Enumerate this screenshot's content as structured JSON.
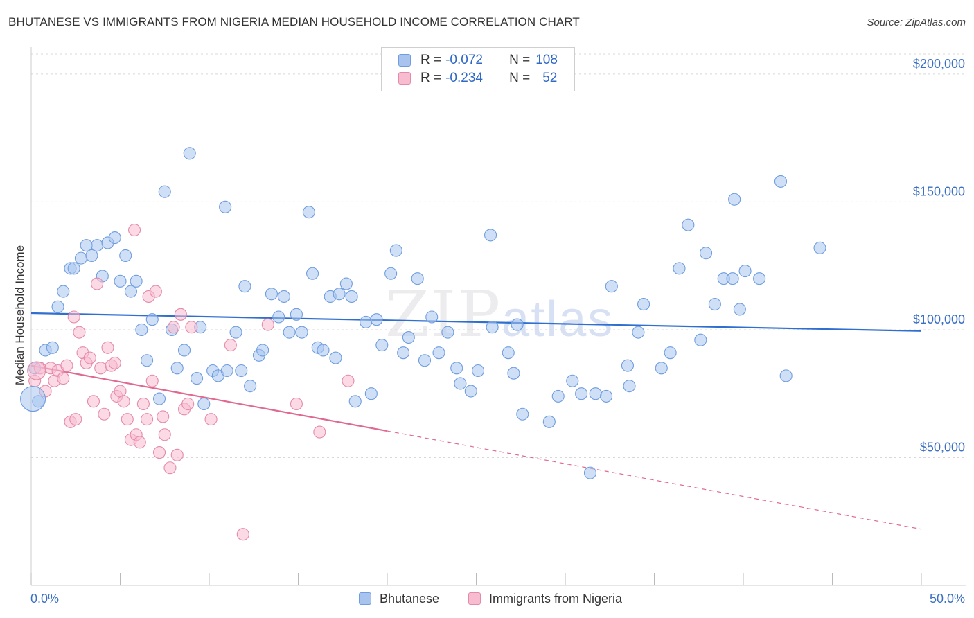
{
  "title": "BHUTANESE VS IMMIGRANTS FROM NIGERIA MEDIAN HOUSEHOLD INCOME CORRELATION CHART",
  "source": "Source: ZipAtlas.com",
  "watermark": {
    "zip": "ZIP",
    "atlas": "atlas"
  },
  "legend": {
    "r_label": "R =",
    "n_label": "N =",
    "rows": [
      {
        "r": "-0.072",
        "n": "108",
        "color": "#a8c4ee",
        "border": "#6f9de0"
      },
      {
        "r": "-0.234",
        "n": "52",
        "color": "#f7bcd0",
        "border": "#e58aa8"
      }
    ]
  },
  "bottom_legend": [
    {
      "label": "Bhutanese",
      "color": "#a8c4ee",
      "border": "#6f9de0"
    },
    {
      "label": "Immigrants from Nigeria",
      "color": "#f7bcd0",
      "border": "#e58aa8"
    }
  ],
  "chart_data": {
    "type": "scatter",
    "title": "BHUTANESE VS IMMIGRANTS FROM NIGERIA MEDIAN HOUSEHOLD INCOME CORRELATION CHART",
    "xlabel": "",
    "ylabel": "Median Household Income",
    "xlim": [
      0,
      50
    ],
    "ylim": [
      0,
      210000
    ],
    "x_tick_labels": [
      "0.0%",
      "50.0%"
    ],
    "y_ticks": [
      50000,
      100000,
      150000,
      200000
    ],
    "y_tick_labels": [
      "$50,000",
      "$100,000",
      "$150,000",
      "$200,000"
    ],
    "grid": "horizontal dashed",
    "legend_position": "top-center",
    "series": [
      {
        "name": "Bhutanese",
        "color": "#6f9de0",
        "fill": "#a8c4ee",
        "trend": {
          "x0": 0,
          "y0": 106500,
          "x1": 50,
          "y1": 99500,
          "solid_to": 50
        },
        "points": [
          [
            0.2,
            85000
          ],
          [
            0.4,
            72000
          ],
          [
            0.8,
            92000
          ],
          [
            1.2,
            93000
          ],
          [
            1.5,
            109000
          ],
          [
            1.8,
            115000
          ],
          [
            2.2,
            124000
          ],
          [
            2.4,
            124000
          ],
          [
            2.8,
            128000
          ],
          [
            3.1,
            133000
          ],
          [
            3.4,
            129000
          ],
          [
            3.7,
            133000
          ],
          [
            4.0,
            121000
          ],
          [
            4.3,
            134000
          ],
          [
            4.7,
            136000
          ],
          [
            5.0,
            119000
          ],
          [
            5.3,
            129000
          ],
          [
            5.6,
            115000
          ],
          [
            5.9,
            119000
          ],
          [
            6.2,
            100000
          ],
          [
            6.5,
            88000
          ],
          [
            6.8,
            104000
          ],
          [
            7.2,
            73000
          ],
          [
            7.5,
            154000
          ],
          [
            7.9,
            100000
          ],
          [
            8.2,
            85000
          ],
          [
            8.6,
            92000
          ],
          [
            8.9,
            169000
          ],
          [
            9.3,
            81000
          ],
          [
            9.5,
            101000
          ],
          [
            9.7,
            71000
          ],
          [
            10.2,
            84000
          ],
          [
            10.5,
            82000
          ],
          [
            10.9,
            148000
          ],
          [
            11.0,
            84000
          ],
          [
            11.5,
            99000
          ],
          [
            11.8,
            84000
          ],
          [
            12.0,
            117000
          ],
          [
            12.3,
            78000
          ],
          [
            12.8,
            90000
          ],
          [
            13.0,
            92000
          ],
          [
            13.5,
            114000
          ],
          [
            13.9,
            105000
          ],
          [
            14.2,
            113000
          ],
          [
            14.5,
            99000
          ],
          [
            14.9,
            106000
          ],
          [
            15.2,
            99000
          ],
          [
            15.6,
            146000
          ],
          [
            15.8,
            122000
          ],
          [
            16.1,
            93000
          ],
          [
            16.4,
            92000
          ],
          [
            16.8,
            113000
          ],
          [
            17.1,
            89000
          ],
          [
            17.3,
            114000
          ],
          [
            17.7,
            118000
          ],
          [
            18.0,
            113000
          ],
          [
            18.2,
            72000
          ],
          [
            18.8,
            103000
          ],
          [
            19.1,
            75000
          ],
          [
            19.4,
            104000
          ],
          [
            19.7,
            94000
          ],
          [
            20.2,
            122000
          ],
          [
            20.5,
            131000
          ],
          [
            20.9,
            91000
          ],
          [
            21.2,
            97000
          ],
          [
            21.7,
            120000
          ],
          [
            22.1,
            88000
          ],
          [
            22.5,
            105000
          ],
          [
            22.9,
            91000
          ],
          [
            23.4,
            99000
          ],
          [
            23.9,
            85000
          ],
          [
            24.1,
            79000
          ],
          [
            24.7,
            76000
          ],
          [
            25.1,
            84000
          ],
          [
            25.8,
            137000
          ],
          [
            25.9,
            101000
          ],
          [
            26.8,
            91000
          ],
          [
            27.1,
            83000
          ],
          [
            27.3,
            102000
          ],
          [
            27.6,
            67000
          ],
          [
            29.1,
            64000
          ],
          [
            29.6,
            74000
          ],
          [
            30.4,
            80000
          ],
          [
            30.9,
            75000
          ],
          [
            31.4,
            44000
          ],
          [
            31.7,
            75000
          ],
          [
            32.3,
            74000
          ],
          [
            32.6,
            117000
          ],
          [
            33.5,
            86000
          ],
          [
            33.6,
            78000
          ],
          [
            34.1,
            99000
          ],
          [
            34.4,
            110000
          ],
          [
            35.4,
            85000
          ],
          [
            35.9,
            91000
          ],
          [
            36.4,
            124000
          ],
          [
            36.9,
            141000
          ],
          [
            37.6,
            96000
          ],
          [
            37.9,
            130000
          ],
          [
            38.4,
            110000
          ],
          [
            38.9,
            120000
          ],
          [
            39.4,
            120000
          ],
          [
            39.5,
            151000
          ],
          [
            39.8,
            108000
          ],
          [
            40.1,
            123000
          ],
          [
            40.9,
            120000
          ],
          [
            42.1,
            158000
          ],
          [
            42.4,
            82000
          ],
          [
            44.3,
            132000
          ]
        ]
      },
      {
        "name": "Immigrants from Nigeria",
        "color": "#e58aa8",
        "fill": "#f7bcd0",
        "trend": {
          "x0": 0,
          "y0": 86000,
          "x1": 50,
          "y1": 22000,
          "solid_to": 20
        },
        "points": [
          [
            0.2,
            80000
          ],
          [
            0.5,
            85000
          ],
          [
            0.8,
            76000
          ],
          [
            1.1,
            85000
          ],
          [
            1.3,
            80000
          ],
          [
            1.5,
            84000
          ],
          [
            1.8,
            81000
          ],
          [
            2.0,
            86000
          ],
          [
            2.2,
            64000
          ],
          [
            2.4,
            105000
          ],
          [
            2.5,
            65000
          ],
          [
            2.7,
            99000
          ],
          [
            2.9,
            91000
          ],
          [
            3.1,
            87000
          ],
          [
            3.3,
            89000
          ],
          [
            3.5,
            72000
          ],
          [
            3.7,
            118000
          ],
          [
            3.9,
            85000
          ],
          [
            4.1,
            67000
          ],
          [
            4.3,
            93000
          ],
          [
            4.5,
            86000
          ],
          [
            4.7,
            87000
          ],
          [
            4.8,
            74000
          ],
          [
            5.0,
            76000
          ],
          [
            5.2,
            72000
          ],
          [
            5.4,
            65000
          ],
          [
            5.6,
            57000
          ],
          [
            5.8,
            139000
          ],
          [
            5.9,
            59000
          ],
          [
            6.1,
            56000
          ],
          [
            6.3,
            71000
          ],
          [
            6.5,
            65000
          ],
          [
            6.6,
            113000
          ],
          [
            6.8,
            80000
          ],
          [
            7.0,
            115000
          ],
          [
            7.2,
            52000
          ],
          [
            7.4,
            66000
          ],
          [
            7.5,
            59000
          ],
          [
            7.8,
            46000
          ],
          [
            8.0,
            101000
          ],
          [
            8.2,
            51000
          ],
          [
            8.4,
            106000
          ],
          [
            8.6,
            69000
          ],
          [
            8.8,
            71000
          ],
          [
            9.0,
            101000
          ],
          [
            10.1,
            65000
          ],
          [
            11.2,
            94000
          ],
          [
            11.9,
            20000
          ],
          [
            13.3,
            102000
          ],
          [
            14.9,
            71000
          ],
          [
            16.2,
            60000
          ],
          [
            17.8,
            80000
          ]
        ]
      }
    ]
  }
}
